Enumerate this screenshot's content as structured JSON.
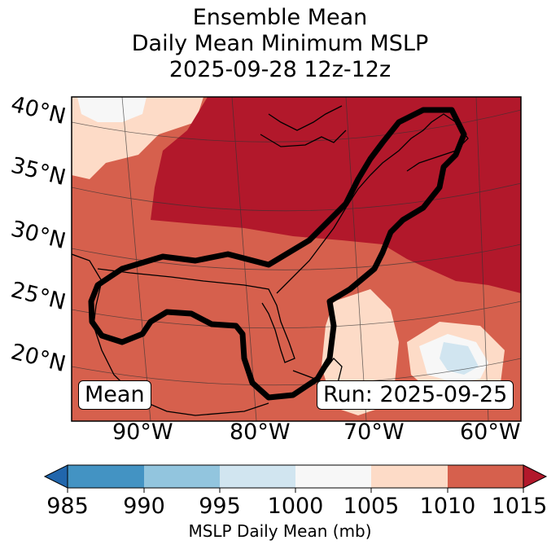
{
  "title": {
    "line1": "Ensemble Mean",
    "line2": "Daily Mean Minimum MSLP",
    "line3": "2025-09-28 12z-12z"
  },
  "map": {
    "region": "Eastern United States, Gulf of Mexico and western Atlantic",
    "lat_labels": [
      "40°N",
      "35°N",
      "30°N",
      "25°N",
      "20°N"
    ],
    "lon_labels": [
      "90°W",
      "80°W",
      "70°W",
      "60°W"
    ],
    "mean_label": "Mean",
    "run_label": "Run: 2025-09-25"
  },
  "colorbar": {
    "ticks": [
      "985",
      "990",
      "995",
      "1000",
      "1005",
      "1010",
      "1015"
    ],
    "colors": [
      "#2166ac",
      "#4393c3",
      "#92c5de",
      "#d1e5f0",
      "#f7f7f7",
      "#fddbc7",
      "#d6604d",
      "#b2182b"
    ],
    "label": "MSLP Daily Mean (mb)"
  }
}
